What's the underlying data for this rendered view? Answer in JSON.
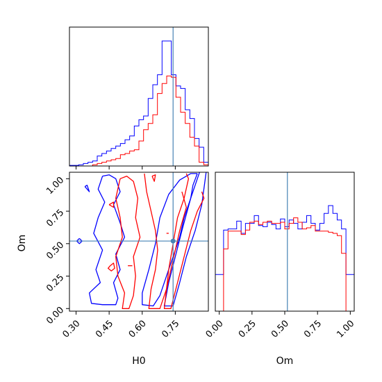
{
  "chart_data": {
    "type": "corner",
    "parameters": [
      "H0",
      "Om"
    ],
    "truth": {
      "H0": 0.74,
      "Om": 0.52
    },
    "colors": {
      "series_a": "#0000ff",
      "series_b": "#ff0000",
      "truth": "#4682b4",
      "axes": "#000000"
    },
    "series": [
      {
        "color": "#0000ff"
      },
      {
        "color": "#ff0000"
      }
    ],
    "panels": [
      {
        "id": "H0-marginal",
        "type": "histogram",
        "parameter": "H0",
        "xlim": [
          0.27,
          0.9
        ],
        "x_ticks": [
          0.3,
          0.45,
          0.6,
          0.75
        ],
        "tick_labels_shown": false,
        "bin_edges": [
          0.27,
          0.291,
          0.312,
          0.333,
          0.354,
          0.375,
          0.396,
          0.417,
          0.438,
          0.459,
          0.48,
          0.501,
          0.522,
          0.543,
          0.564,
          0.585,
          0.606,
          0.627,
          0.648,
          0.669,
          0.69,
          0.711,
          0.732,
          0.753,
          0.774,
          0.795,
          0.816,
          0.837,
          0.858,
          0.879,
          0.9
        ],
        "density": {
          "series_a": [
            0.5,
            0.5,
            1,
            2,
            3,
            4,
            8,
            10,
            12,
            14,
            16,
            18,
            21,
            24,
            32,
            37,
            40,
            54,
            65,
            73,
            100,
            100,
            73,
            64,
            62,
            45,
            38,
            22,
            15,
            3
          ],
          "series_b": [
            0,
            0,
            0,
            0,
            0,
            1,
            2,
            3,
            4,
            5,
            6,
            9,
            10,
            12,
            13,
            20,
            29,
            34,
            41,
            58,
            66,
            72,
            71,
            55,
            43,
            34,
            23,
            16,
            3,
            1
          ]
        },
        "truth_line": 0.74
      },
      {
        "id": "H0-Om-joint",
        "type": "contour",
        "x_param": "H0",
        "y_param": "Om",
        "xlim": [
          0.27,
          0.9
        ],
        "ylim": [
          -0.02,
          1.05
        ],
        "x_ticks": [
          0.3,
          0.45,
          0.6,
          0.75
        ],
        "x_tick_labels": [
          "0.30",
          "0.45",
          "0.60",
          "0.75"
        ],
        "y_ticks": [
          0.0,
          0.25,
          0.5,
          0.75,
          1.0
        ],
        "y_tick_labels": [
          "0.00",
          "0.25",
          "0.50",
          "0.75",
          "1.00"
        ],
        "xlabel": "H0",
        "ylabel": "Om",
        "truth_point": [
          0.74,
          0.52
        ],
        "contours": {
          "series_a": [
            [
              [
                0.85,
                1.04
              ],
              [
                0.83,
                0.95
              ],
              [
                0.82,
                0.85
              ],
              [
                0.79,
                0.7
              ],
              [
                0.77,
                0.55
              ],
              [
                0.74,
                0.4
              ],
              [
                0.71,
                0.25
              ],
              [
                0.68,
                0.1
              ],
              [
                0.65,
                0.02
              ],
              [
                0.6,
                0.03
              ],
              [
                0.6,
                0.12
              ],
              [
                0.63,
                0.3
              ],
              [
                0.66,
                0.5
              ],
              [
                0.68,
                0.7
              ],
              [
                0.72,
                0.88
              ],
              [
                0.77,
                0.99
              ],
              [
                0.82,
                1.04
              ],
              [
                0.85,
                1.04
              ]
            ],
            [
              [
                0.89,
                1.05
              ],
              [
                0.87,
                0.8
              ],
              [
                0.84,
                0.6
              ],
              [
                0.8,
                0.4
              ],
              [
                0.77,
                0.2
              ],
              [
                0.74,
                0.02
              ],
              [
                0.7,
                0.02
              ],
              [
                0.72,
                0.2
              ],
              [
                0.75,
                0.4
              ],
              [
                0.78,
                0.6
              ],
              [
                0.82,
                0.85
              ],
              [
                0.86,
                1.05
              ]
            ],
            [
              [
                0.42,
                1.02
              ],
              [
                0.4,
                0.92
              ],
              [
                0.43,
                0.82
              ],
              [
                0.4,
                0.7
              ],
              [
                0.38,
                0.58
              ],
              [
                0.42,
                0.45
              ],
              [
                0.39,
                0.3
              ],
              [
                0.41,
                0.2
              ],
              [
                0.36,
                0.12
              ],
              [
                0.37,
                0.04
              ],
              [
                0.42,
                0.03
              ],
              [
                0.48,
                0.03
              ],
              [
                0.49,
                0.08
              ],
              [
                0.47,
                0.2
              ],
              [
                0.5,
                0.3
              ],
              [
                0.48,
                0.42
              ],
              [
                0.52,
                0.55
              ],
              [
                0.5,
                0.66
              ],
              [
                0.47,
                0.8
              ],
              [
                0.5,
                0.9
              ],
              [
                0.48,
                1.0
              ],
              [
                0.45,
                1.03
              ],
              [
                0.42,
                1.02
              ]
            ],
            [
              [
                0.34,
                0.94
              ],
              [
                0.36,
                0.9
              ],
              [
                0.35,
                0.95
              ],
              [
                0.34,
                0.94
              ]
            ],
            [
              [
                0.315,
                0.54
              ],
              [
                0.327,
                0.52
              ],
              [
                0.315,
                0.5
              ],
              [
                0.303,
                0.52
              ],
              [
                0.315,
                0.54
              ]
            ]
          ],
          "series_b": [
            [
              [
                0.61,
                1.04
              ],
              [
                0.62,
                0.9
              ],
              [
                0.64,
                0.75
              ],
              [
                0.66,
                0.6
              ],
              [
                0.67,
                0.45
              ],
              [
                0.66,
                0.3
              ],
              [
                0.64,
                0.15
              ],
              [
                0.63,
                0.0
              ],
              [
                0.68,
                0.0
              ],
              [
                0.71,
                0.15
              ],
              [
                0.72,
                0.3
              ],
              [
                0.74,
                0.5
              ],
              [
                0.76,
                0.7
              ],
              [
                0.79,
                0.85
              ],
              [
                0.81,
                1.0
              ],
              [
                0.8,
                1.04
              ]
            ],
            [
              [
                0.78,
                0.9
              ],
              [
                0.8,
                0.78
              ],
              [
                0.77,
                0.6
              ],
              [
                0.75,
                0.45
              ],
              [
                0.73,
                0.3
              ],
              [
                0.71,
                0.15
              ],
              [
                0.7,
                0.0
              ],
              [
                0.73,
                0.0
              ],
              [
                0.76,
                0.2
              ],
              [
                0.79,
                0.4
              ],
              [
                0.82,
                0.6
              ],
              [
                0.85,
                0.75
              ],
              [
                0.88,
                0.85
              ],
              [
                0.87,
                0.9
              ]
            ],
            [
              [
                0.5,
                1.0
              ],
              [
                0.48,
                0.85
              ],
              [
                0.5,
                0.7
              ],
              [
                0.51,
                0.55
              ],
              [
                0.48,
                0.4
              ],
              [
                0.49,
                0.25
              ],
              [
                0.52,
                0.12
              ],
              [
                0.51,
                0.0
              ],
              [
                0.54,
                0.0
              ],
              [
                0.56,
                0.1
              ],
              [
                0.57,
                0.25
              ],
              [
                0.56,
                0.4
              ],
              [
                0.59,
                0.55
              ],
              [
                0.57,
                0.7
              ],
              [
                0.58,
                0.85
              ],
              [
                0.56,
                0.98
              ],
              [
                0.53,
                1.02
              ],
              [
                0.5,
                1.0
              ]
            ],
            [
              [
                0.455,
                0.33
              ],
              [
                0.47,
                0.35
              ],
              [
                0.475,
                0.31
              ],
              [
                0.46,
                0.29
              ],
              [
                0.445,
                0.31
              ],
              [
                0.455,
                0.33
              ]
            ],
            [
              [
                0.45,
                0.8
              ],
              [
                0.47,
                0.82
              ],
              [
                0.47,
                0.78
              ],
              [
                0.45,
                0.8
              ]
            ],
            [
              [
                0.535,
                0.33
              ],
              [
                0.555,
                0.33
              ]
            ],
            [
              [
                0.71,
                0.58
              ],
              [
                0.72,
                0.58
              ]
            ],
            [
              [
                0.645,
                1.02
              ],
              [
                0.655,
                0.98
              ],
              [
                0.66,
                1.03
              ],
              [
                0.645,
                1.02
              ]
            ]
          ]
        }
      },
      {
        "id": "Om-marginal",
        "type": "histogram",
        "parameter": "Om",
        "xlim": [
          -0.03,
          1.03
        ],
        "x_ticks": [
          0.0,
          0.25,
          0.5,
          0.75,
          1.0
        ],
        "x_tick_labels": [
          "0.00",
          "0.25",
          "0.50",
          "0.75",
          "1.00"
        ],
        "xlabel": "Om",
        "bin_edges": [
          -0.03,
          0.0,
          0.033,
          0.067,
          0.1,
          0.133,
          0.167,
          0.2,
          0.233,
          0.267,
          0.3,
          0.333,
          0.367,
          0.4,
          0.433,
          0.467,
          0.5,
          0.533,
          0.567,
          0.6,
          0.633,
          0.667,
          0.7,
          0.733,
          0.767,
          0.8,
          0.833,
          0.867,
          0.9,
          0.933,
          0.967,
          1.0,
          1.03
        ],
        "density": {
          "series_a": [
            33,
            33,
            73,
            74,
            74,
            81,
            70,
            79,
            79,
            86,
            77,
            76,
            80,
            78,
            74,
            83,
            76,
            82,
            79,
            74,
            80,
            86,
            79,
            73,
            79,
            88,
            95,
            88,
            82,
            74,
            33,
            33
          ],
          "series_b": [
            0,
            0,
            56,
            72,
            72,
            72,
            69,
            73,
            80,
            81,
            78,
            80,
            81,
            79,
            79,
            80,
            74,
            79,
            84,
            80,
            74,
            75,
            77,
            72,
            72,
            72,
            71,
            70,
            68,
            52,
            0,
            0
          ]
        },
        "truth_line": 0.52
      }
    ]
  }
}
